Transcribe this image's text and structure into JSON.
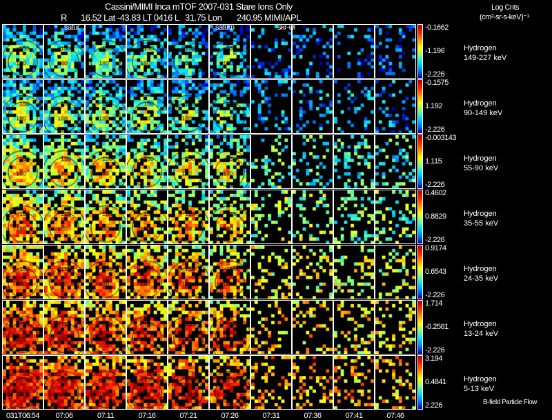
{
  "header": {
    "title": "Cassini/MIMI Inca mTOF  2007-031   Stare   Ions Only",
    "line2_r": "R",
    "line2_a": "16.52 Lat -43.83 LT 0416 L",
    "line2_b": "31.75 Lon",
    "line2_c": "240.95  MIMI/APL",
    "units_1": "Log Cnts",
    "units_2": "(cm²-sr-s-keV)⁻¹"
  },
  "annotations": {
    "satur_1": "satur",
    "saturn_2": "saturn",
    "skr": "skr-wl",
    "bfield": "B-field Particle Flow",
    "ring_150": "150",
    "ring_180": "180",
    "ring_120": "120"
  },
  "chart_data": {
    "type": "heatmap",
    "title": "Cassini/MIMI Inca mTOF  2007-031   Stare   Ions Only",
    "times": [
      "031T06:54",
      "07:06",
      "07:11",
      "07:16",
      "07:21",
      "07:26",
      "07:31",
      "07:36",
      "07:41",
      "07:46"
    ],
    "rows": [
      {
        "species": "Hydrogen",
        "energy": "149-227 keV",
        "cmax": "-0.1662",
        "cmid": "-1.196",
        "cmin": "-2.226",
        "level": 0.25
      },
      {
        "species": "Hydrogen",
        "energy": "90-149 keV",
        "cmax": "-0.1575",
        "cmid": "1.192",
        "cmin": "-2.226",
        "level": 0.3
      },
      {
        "species": "Hydrogen",
        "energy": "55-90 keV",
        "cmax": "-0.003143",
        "cmid": "1.115",
        "cmin": "-2.226",
        "level": 0.45
      },
      {
        "species": "Hydrogen",
        "energy": "35-55 keV",
        "cmax": "0.4602",
        "cmid": "0.8829",
        "cmin": "-2.226",
        "level": 0.55
      },
      {
        "species": "Hydrogen",
        "energy": "24-35 keV",
        "cmax": "0.9174",
        "cmid": "0.6543",
        "cmin": "-2.226",
        "level": 0.65
      },
      {
        "species": "Hydrogen",
        "energy": "13-24 keV",
        "cmax": "1.714",
        "cmid": "-0.2561",
        "cmin": "-2.226",
        "level": 0.72
      },
      {
        "species": "Hydrogen",
        "energy": "5-13 keV",
        "cmax": "3.194",
        "cmid": "0.4841",
        "cmin": "2.226",
        "level": 0.78
      }
    ]
  }
}
